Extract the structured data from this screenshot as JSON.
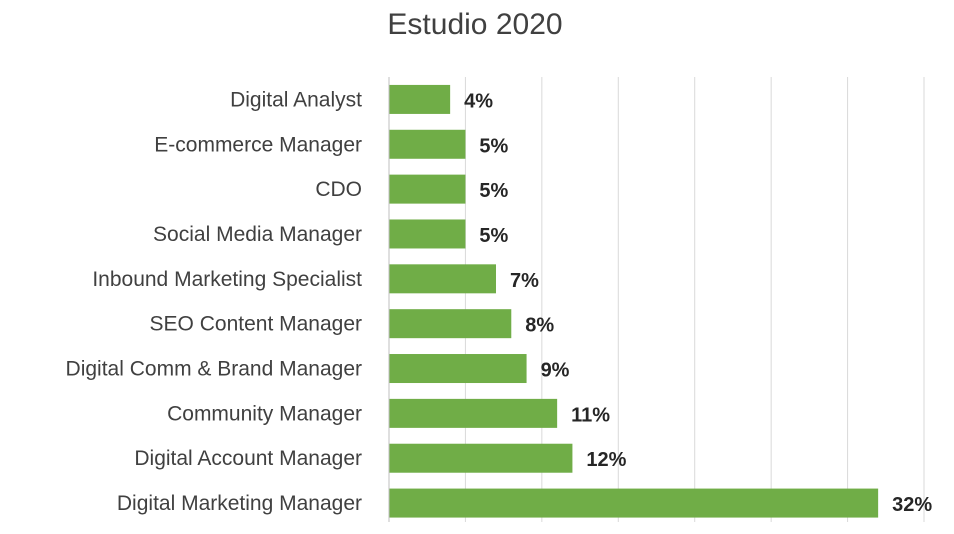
{
  "chart_data": {
    "type": "bar",
    "orientation": "horizontal",
    "title": "Estudio 2020",
    "xlabel": "",
    "ylabel": "",
    "categories": [
      "Digital Analyst",
      "E-commerce Manager",
      "CDO",
      "Social Media Manager",
      "Inbound Marketing Specialist",
      "SEO Content Manager",
      "Digital Comm & Brand Manager",
      "Community Manager",
      "Digital Account Manager",
      "Digital Marketing Manager"
    ],
    "values": [
      4,
      5,
      5,
      5,
      7,
      8,
      9,
      11,
      12,
      32
    ],
    "value_labels": [
      "4%",
      "5%",
      "5%",
      "5%",
      "7%",
      "8%",
      "9%",
      "11%",
      "12%",
      "32%"
    ],
    "xlim": [
      0,
      0.35
    ],
    "grid": true,
    "legend": "none",
    "bar_color": "#70ad47"
  }
}
